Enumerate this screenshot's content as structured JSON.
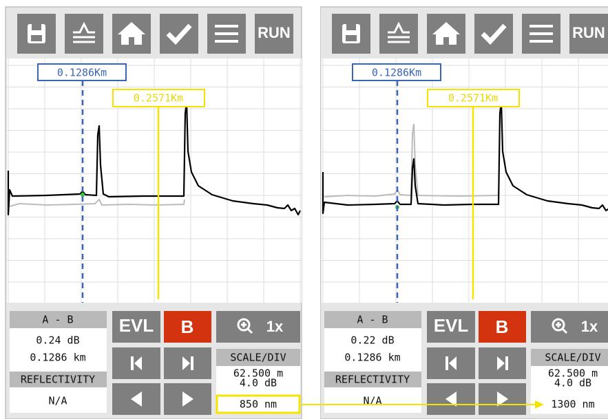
{
  "panels": [
    {
      "run": "RUN",
      "marker_a": "0.1286Km",
      "marker_b": "0.2571Km",
      "ab_header": "A - B",
      "loss": "0.24 dB",
      "distance": "0.1286 km",
      "reflectivity_label": "REFLECTIVITY",
      "reflectivity": "N/A",
      "evl": "EVL",
      "b_button": "B",
      "zoom": "1x",
      "scale_header": "SCALE/DIV",
      "scale_distance": "62.500 m",
      "scale_db": "4.0 dB",
      "wavelength": "850 nm"
    },
    {
      "run": "RUN",
      "marker_a": "0.1286Km",
      "marker_b": "0.2571Km",
      "ab_header": "A - B",
      "loss": "0.22 dB",
      "distance": "0.1286 km",
      "reflectivity_label": "REFLECTIVITY",
      "reflectivity": "N/A",
      "evl": "EVL",
      "b_button": "B",
      "zoom": "1x",
      "scale_header": "SCALE/DIV",
      "scale_distance": "62.500 m",
      "scale_db": "4.0 dB",
      "wavelength": "1300 nm"
    }
  ]
}
